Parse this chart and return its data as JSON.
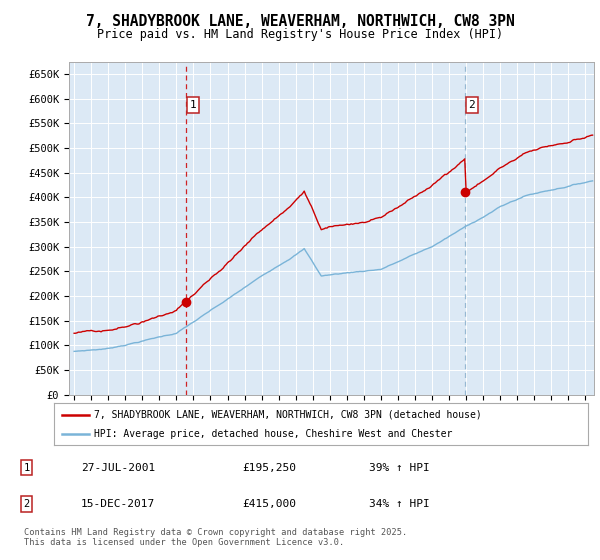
{
  "title": "7, SHADYBROOK LANE, WEAVERHAM, NORTHWICH, CW8 3PN",
  "subtitle": "Price paid vs. HM Land Registry's House Price Index (HPI)",
  "legend_line1": "7, SHADYBROOK LANE, WEAVERHAM, NORTHWICH, CW8 3PN (detached house)",
  "legend_line2": "HPI: Average price, detached house, Cheshire West and Chester",
  "sale1_date": "27-JUL-2001",
  "sale1_price": "£195,250",
  "sale1_hpi": "39% ↑ HPI",
  "sale2_date": "15-DEC-2017",
  "sale2_price": "£415,000",
  "sale2_hpi": "34% ↑ HPI",
  "footer": "Contains HM Land Registry data © Crown copyright and database right 2025.\nThis data is licensed under the Open Government Licence v3.0.",
  "hpi_color": "#7ab4d8",
  "sale_color": "#cc0000",
  "vline1_color": "#cc0000",
  "vline2_color": "#8ab0cc",
  "bg_color": "#dce9f5",
  "sale1_x": 2001.58,
  "sale2_x": 2017.96,
  "sale1_price_val": 195250,
  "sale2_price_val": 415000,
  "ylim_min": 0,
  "ylim_max": 675000,
  "ytick_step": 50000,
  "xlim_min": 1994.7,
  "xlim_max": 2025.5
}
